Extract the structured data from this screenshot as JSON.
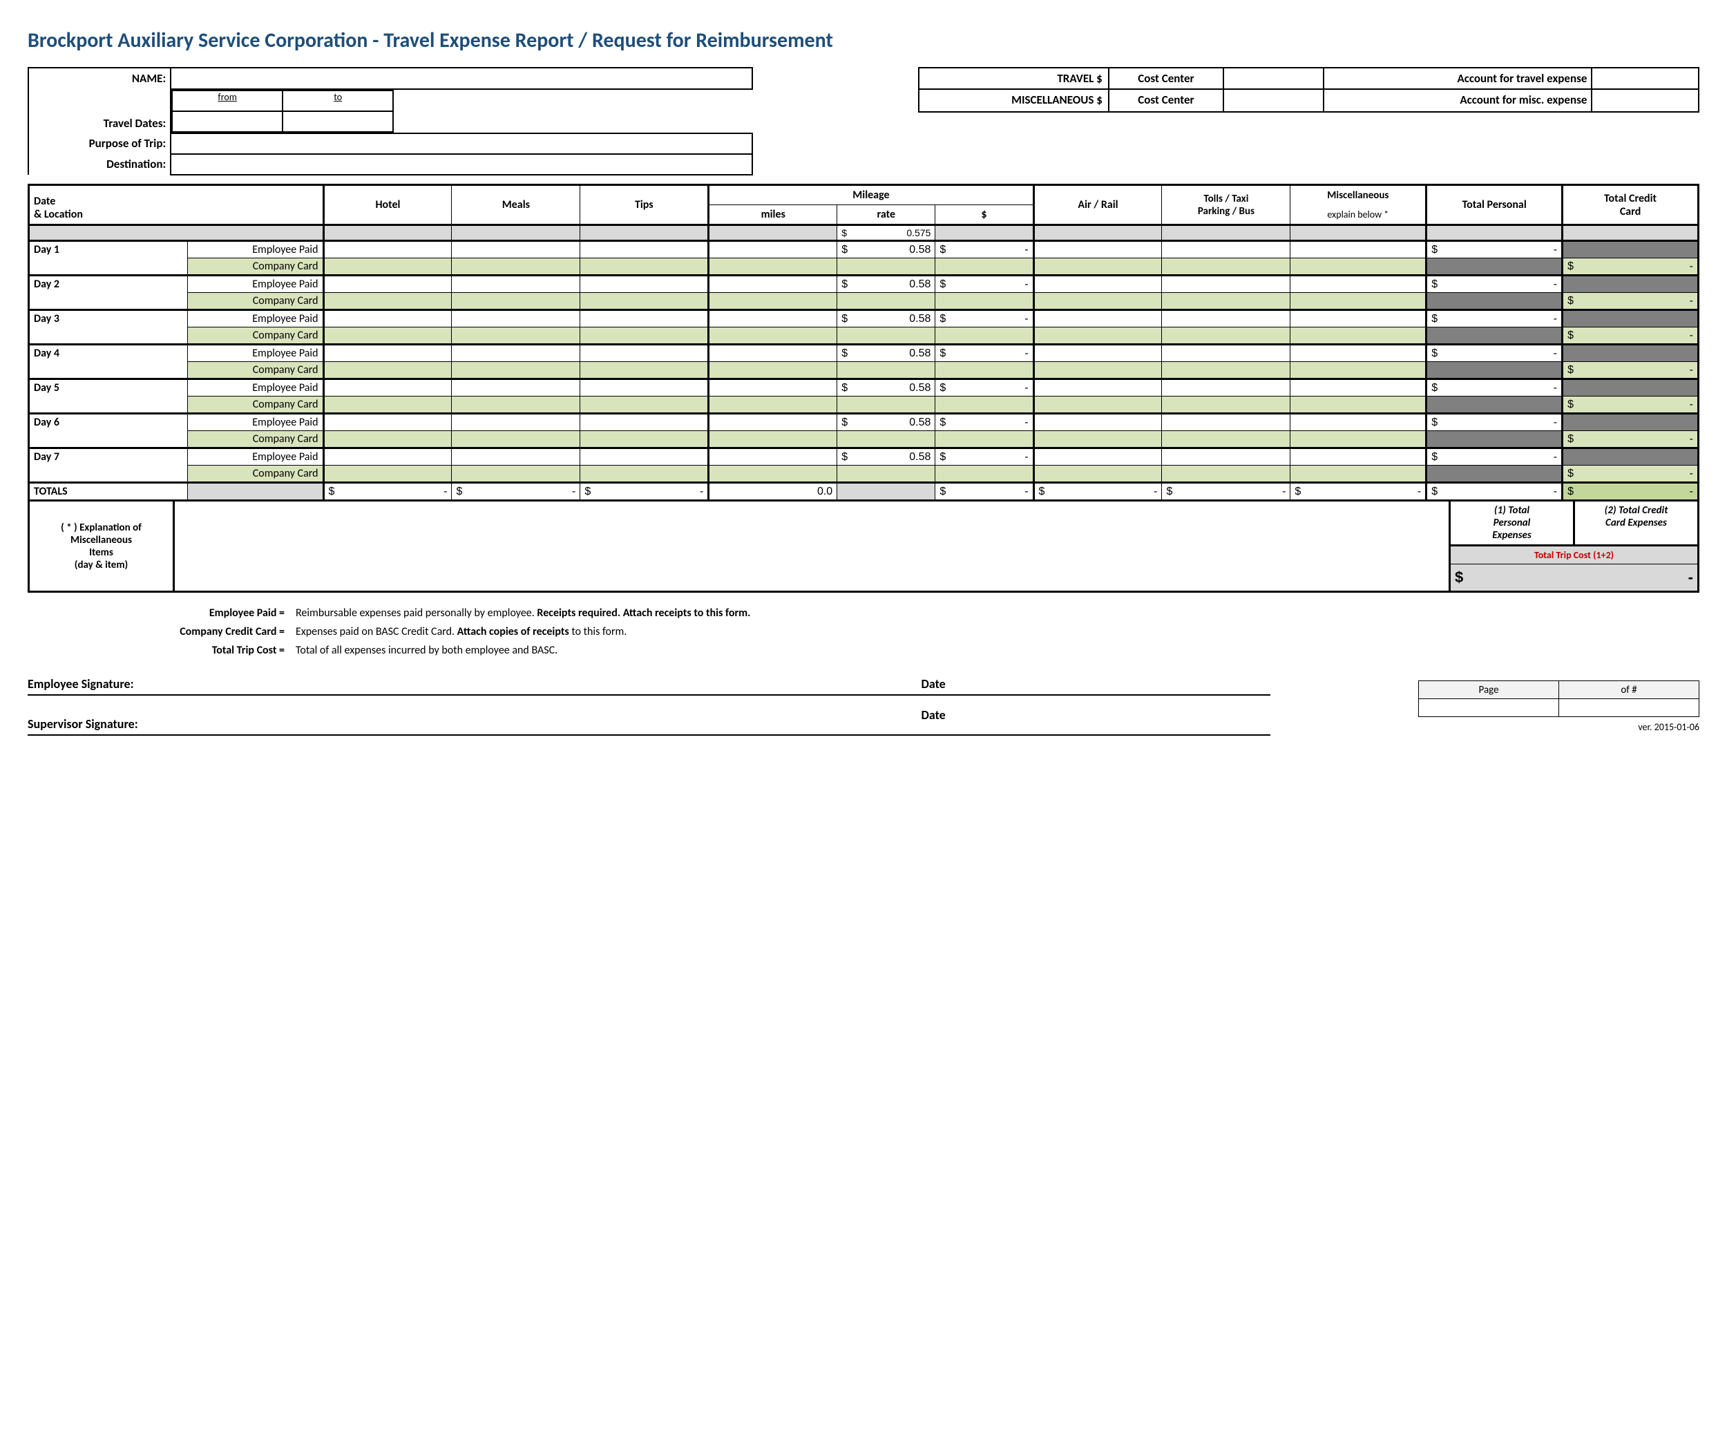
{
  "title": "Brockport Auxiliary Service Corporation  - Travel Expense Report / Request for Reimbursement",
  "header": {
    "name_lbl": "NAME:",
    "travel_dates_lbl": "Travel Dates:",
    "from_lbl": "from",
    "to_lbl": "to",
    "purpose_lbl": "Purpose of Trip:",
    "destination_lbl": "Destination:",
    "travel_money_lbl": "TRAVEL $",
    "misc_money_lbl": "MISCELLANEOUS $",
    "cost_center_lbl": "Cost Center",
    "acct_travel_lbl": "Account for travel expense",
    "acct_misc_lbl": "Account for misc. expense"
  },
  "columns": {
    "date_loc": "Date\n& Location",
    "hotel": "Hotel",
    "meals": "Meals",
    "tips": "Tips",
    "mileage": "Mileage",
    "miles": "miles",
    "rate": "rate",
    "dollar": "$",
    "air_rail": "Air / Rail",
    "tolls": "Tolls / Taxi\nParking / Bus",
    "misc": "Miscellaneous",
    "misc_sub": "explain below *",
    "total_personal": "Total Personal",
    "total_cc": "Total Credit\nCard"
  },
  "rate_default": "0.575",
  "days": [
    {
      "label": "Day 1",
      "rate": "0.58"
    },
    {
      "label": "Day 2",
      "rate": "0.58"
    },
    {
      "label": "Day 3",
      "rate": "0.58"
    },
    {
      "label": "Day 4",
      "rate": "0.58"
    },
    {
      "label": "Day 5",
      "rate": "0.58"
    },
    {
      "label": "Day 6",
      "rate": "0.58"
    },
    {
      "label": "Day 7",
      "rate": "0.58"
    }
  ],
  "row_labels": {
    "emp": "Employee Paid",
    "cc": "Company Card"
  },
  "totals_lbl": "TOTALS",
  "miles_total": "0.0",
  "dash": "-",
  "explanation": {
    "lbl1": "( * ) Explanation of",
    "lbl2": "Miscellaneous",
    "lbl3": "Items",
    "lbl4": "(day & item)",
    "tot1a": "(1) Total",
    "tot1b": "Personal",
    "tot1c": "Expenses",
    "tot2a": "(2) Total Credit",
    "tot2b": "Card Expenses",
    "trip_total": "Total Trip Cost (1+2)"
  },
  "notes": {
    "emp_paid_l": "Employee Paid =",
    "emp_paid_r1": "Reimbursable expenses paid personally by employee. ",
    "emp_paid_r2": "Receipts required. Attach receipts to this form.",
    "cc_l": "Company Credit Card =",
    "cc_r1": "Expenses paid on BASC Credit Card. ",
    "cc_r2": "Attach copies of receipts",
    "cc_r3": " to this form.",
    "trip_l": "Total Trip Cost =",
    "trip_r": "Total of all expenses incurred by both employee and BASC."
  },
  "sigs": {
    "emp": "Employee Signature:",
    "sup": "Supervisor Signature:",
    "date": "Date"
  },
  "footer": {
    "page": "Page",
    "of": "of #",
    "ver": "ver. 2015-01-06"
  },
  "colors": {
    "title": "#1f4e79",
    "grey": "#d9d9d9",
    "darkgrey": "#808080",
    "green": "#d8e4bc",
    "greenlight": "#c4d79b",
    "red": "#c00000"
  }
}
